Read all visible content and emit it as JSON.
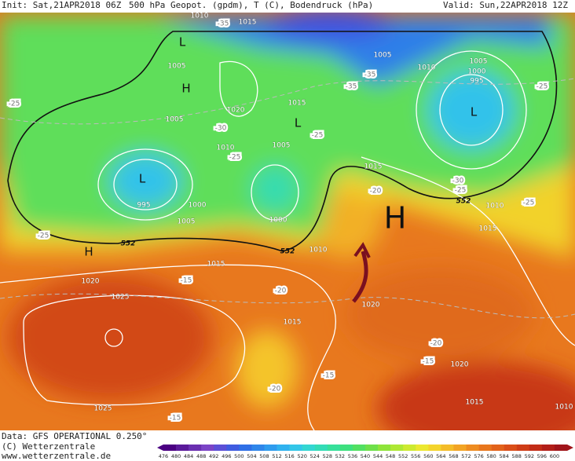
{
  "header": {
    "init": "Init: Sat,21APR2018 06Z",
    "title": "500 hPa Geopot. (gpdm), T (C), Bodendruck (hPa)",
    "valid": "Valid: Sun,22APR2018 12Z"
  },
  "map": {
    "pressure_labels": [
      "1010",
      "1015",
      "1005",
      "1020",
      "1005",
      "1015",
      "1010",
      "1005",
      "995",
      "1000",
      "1005",
      "1000",
      "1010",
      "1015",
      "1020",
      "1025",
      "1015",
      "1020",
      "1015",
      "1005",
      "1010",
      "1005",
      "1000",
      "995",
      "1010",
      "1015",
      "1020",
      "1015",
      "1025",
      "1010"
    ],
    "temperature_labels": [
      "-35",
      "-35",
      "-35",
      "-25",
      "-25",
      "-30",
      "-25",
      "-25",
      "-30",
      "-25",
      "-20",
      "-25",
      "-25",
      "-15",
      "-20",
      "-20",
      "-15",
      "-20",
      "-15",
      "-15"
    ],
    "height_labels": [
      "552",
      "552",
      "552"
    ],
    "highs": [
      "H",
      "H",
      "H"
    ],
    "lows": [
      "L",
      "L",
      "L",
      "L"
    ]
  },
  "footer": {
    "data": "Data: GFS OPERATIONAL 0.250°",
    "copyright": "(C) Wetterzentrale",
    "url": "www.wetterzentrale.de"
  },
  "colorbar": {
    "ticks": [
      "476",
      "480",
      "484",
      "488",
      "492",
      "496",
      "500",
      "504",
      "508",
      "512",
      "516",
      "520",
      "524",
      "528",
      "532",
      "536",
      "540",
      "544",
      "548",
      "552",
      "556",
      "560",
      "564",
      "568",
      "572",
      "576",
      "580",
      "584",
      "588",
      "592",
      "596",
      "600"
    ],
    "colors": [
      "#4b0082",
      "#5a1a9a",
      "#6a2fb0",
      "#7b44c6",
      "#5b4fd6",
      "#3f5be0",
      "#2f6fe6",
      "#2f86ea",
      "#2f9cee",
      "#30b2ef",
      "#33c6e8",
      "#33d6d2",
      "#33dcb6",
      "#36e09a",
      "#3ee07e",
      "#52e062",
      "#6ee04a",
      "#8ee43a",
      "#aee834",
      "#cdea30",
      "#ece830",
      "#f4d42c",
      "#f4bc28",
      "#f2a424",
      "#ee8c20",
      "#e8761c",
      "#e2621a",
      "#da4e18",
      "#cf3c16",
      "#c22c16",
      "#b21e18",
      "#a0141a"
    ]
  }
}
